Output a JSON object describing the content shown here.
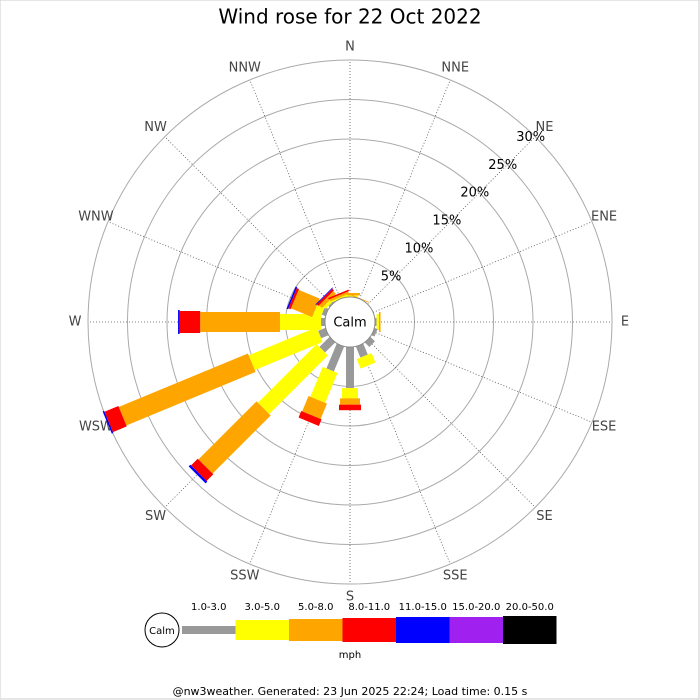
{
  "chart_data": {
    "type": "windrose",
    "title": "Wind rose for 22 Oct 2022",
    "calm_label": "Calm",
    "categories": [
      "N",
      "NNE",
      "NE",
      "ENE",
      "E",
      "ESE",
      "SE",
      "SSE",
      "S",
      "SSW",
      "SW",
      "WSW",
      "W",
      "WNW",
      "NW",
      "NNW"
    ],
    "rlim": [
      0,
      30
    ],
    "rticks": [
      {
        "value": 5,
        "label": "5%"
      },
      {
        "value": 10,
        "label": "10%"
      },
      {
        "value": 15,
        "label": "15%"
      },
      {
        "value": 20,
        "label": "20%"
      },
      {
        "value": 25,
        "label": "25%"
      },
      {
        "value": 30,
        "label": "30%"
      }
    ],
    "units": "mph",
    "series": [
      {
        "name": "1.0-3.0",
        "color": "#999999",
        "values": [
          0,
          0,
          0,
          0,
          0.2,
          0.4,
          0.8,
          1.5,
          5.2,
          3.4,
          1.8,
          1.0,
          0.5,
          0.5,
          0.2,
          0
        ]
      },
      {
        "name": "3.0-5.0",
        "color": "#ffff00",
        "values": [
          0.2,
          0,
          0,
          0,
          0.3,
          0,
          0,
          1.3,
          1.3,
          4.1,
          10.5,
          9.3,
          5.2,
          1.0,
          0.4,
          0.2
        ]
      },
      {
        "name": "5.0-8.0",
        "color": "#ffa500",
        "values": [
          0.3,
          0.1,
          0,
          0,
          0.2,
          0,
          0,
          0,
          0.8,
          2.1,
          10.4,
          17.7,
          10.1,
          2.9,
          0.5,
          0.3
        ]
      },
      {
        "name": "8.0-11.0",
        "color": "#ff0000",
        "values": [
          0,
          0,
          0,
          0,
          0,
          0,
          0,
          0,
          0.7,
          0.9,
          1.2,
          1.9,
          2.6,
          0.3,
          0.3,
          0.2
        ]
      },
      {
        "name": "11.0-15.0",
        "color": "#0000ff",
        "values": [
          0,
          0,
          0,
          0,
          0,
          0,
          0,
          0,
          0,
          0,
          0.3,
          0.2,
          0.2,
          0.2,
          0.1,
          0
        ]
      },
      {
        "name": "15.0-20.0",
        "color": "#a020f0",
        "values": [
          0,
          0,
          0,
          0,
          0,
          0,
          0,
          0,
          0,
          0,
          0,
          0,
          0,
          0,
          0,
          0
        ]
      },
      {
        "name": "20.0-50.0",
        "color": "#000000",
        "values": [
          0,
          0,
          0,
          0,
          0,
          0,
          0,
          0,
          0,
          0,
          0,
          0,
          0,
          0,
          0,
          0
        ]
      }
    ],
    "footer": "@nw3weather. Generated: 23 Jun 2025 22:24; Load time: 0.15 s"
  }
}
